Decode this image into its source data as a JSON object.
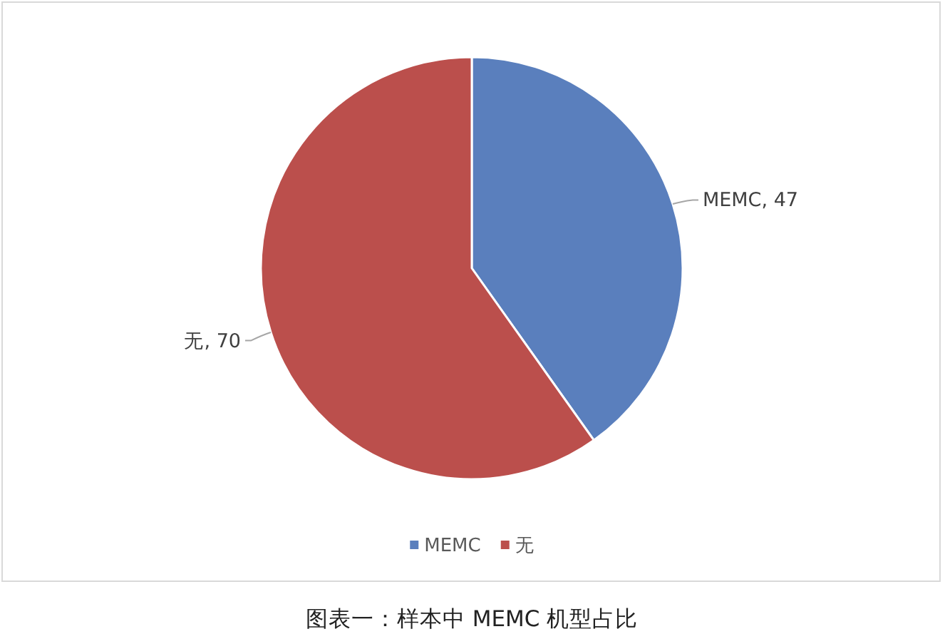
{
  "chart_data": {
    "type": "pie",
    "title": "图表一：样本中 MEMC 机型占比",
    "categories": [
      "MEMC",
      "无"
    ],
    "values": [
      47,
      70
    ],
    "colors": [
      "#5a7fbd",
      "#bb4f4c"
    ],
    "value_labels": [
      "MEMC, 47",
      "无, 70"
    ],
    "legend": "bottom"
  }
}
